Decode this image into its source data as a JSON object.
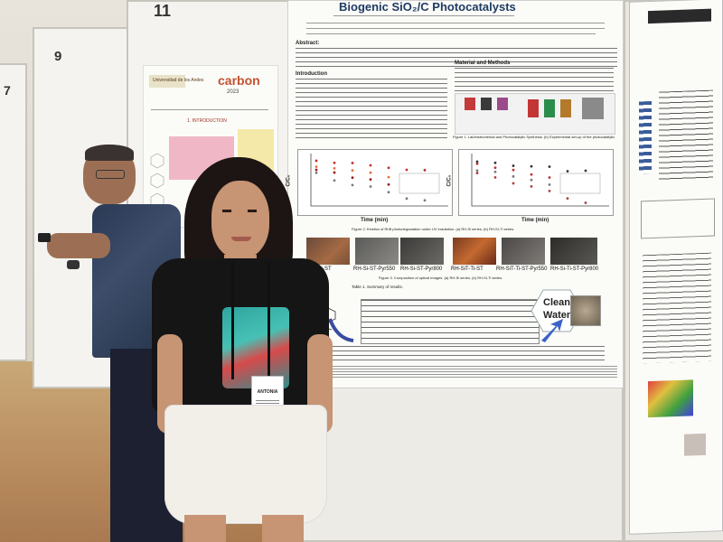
{
  "booths": {
    "number_left_top": "11",
    "number_left_mid": "9",
    "number_left_edge": "7"
  },
  "poster_main": {
    "title": "Biogenic SiO₂/C Photocatalysts",
    "section_intro": "Introduction",
    "section_methods": "Material and Methods",
    "section_abstract": "Abstract:",
    "xlabel_a": "Time (min)",
    "xlabel_b": "Time (min)",
    "ylabel": "C/C₀",
    "caption_fig1": "Figure 1. Lab/instrumental and Photocatalytic Synthesis. (b) Experimental set-up of the photocatalytic activity.",
    "caption_fig2": "Figure 2. Kinetics of RhB photodegradation under UV irradiation. (a) RH-Si series, (b) RH-SI-Ti series.",
    "caption_fig3": "Figure 3. Composition of optical images. (a) RH-Si series, (b) RH-Si-Ti series.",
    "samples": [
      "RH-Si-ST",
      "RH-Si-ST-Pyr550",
      "RH-Si-ST-Pyr800",
      "RH-SiT-Ti-ST",
      "RH-SiT-Ti-ST-Pyr550",
      "RH-Si-Ti-ST-Pyr800"
    ],
    "clean_water": [
      "Clean",
      "Water"
    ],
    "table_title": "Table 1. Summary of results."
  },
  "poster_left": {
    "university": "Universidad de los Andes",
    "event_logo": "carbon",
    "event_year": "2023",
    "section": "1. INTRODUCTION"
  },
  "badge": {
    "name": "ANTONIA",
    "role": "POSTER"
  }
}
